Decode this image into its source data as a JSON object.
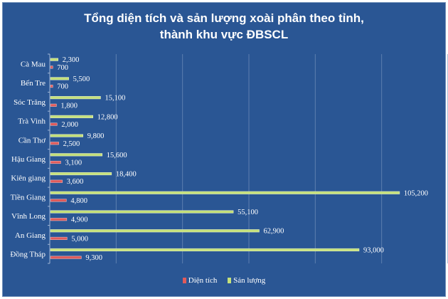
{
  "chart_data": {
    "type": "bar",
    "orientation": "horizontal",
    "title_lines": [
      "Tổng diện tích và sản lượng xoài phân theo tỉnh,",
      "thành khu vực ĐBSCL"
    ],
    "categories": [
      "Cà Mau",
      "Bến Tre",
      "Sóc Trăng",
      "Trà Vinh",
      "Cần Thơ",
      "Hậu Giang",
      "Kiên giang",
      "Tiền Giang",
      "Vĩnh Long",
      "An Giang",
      "Đồng Tháp"
    ],
    "series": [
      {
        "name": "Diện tích",
        "color": "#e05b5b",
        "values": [
          700,
          700,
          1800,
          2000,
          2500,
          3100,
          3600,
          4800,
          4900,
          5000,
          9300
        ],
        "labels": [
          "700",
          "700",
          "1,800",
          "2,000",
          "2,500",
          "3,100",
          "3,600",
          "4,800",
          "4,900",
          "5,000",
          "9,300"
        ]
      },
      {
        "name": "Sản lượng",
        "color": "#c4e07a",
        "values": [
          2300,
          5500,
          15100,
          12800,
          9800,
          15600,
          18400,
          105200,
          55100,
          62900,
          93000
        ],
        "labels": [
          "2,300",
          "5,500",
          "15,100",
          "12,800",
          "9,800",
          "15,600",
          "18,400",
          "105,200",
          "55,100",
          "62,900",
          "93,000"
        ]
      }
    ],
    "xlim": [
      0,
      120000
    ],
    "grid": true,
    "legend_position": "bottom"
  },
  "colors": {
    "background": "#2a5694",
    "gridline": "#5d7fb0"
  }
}
